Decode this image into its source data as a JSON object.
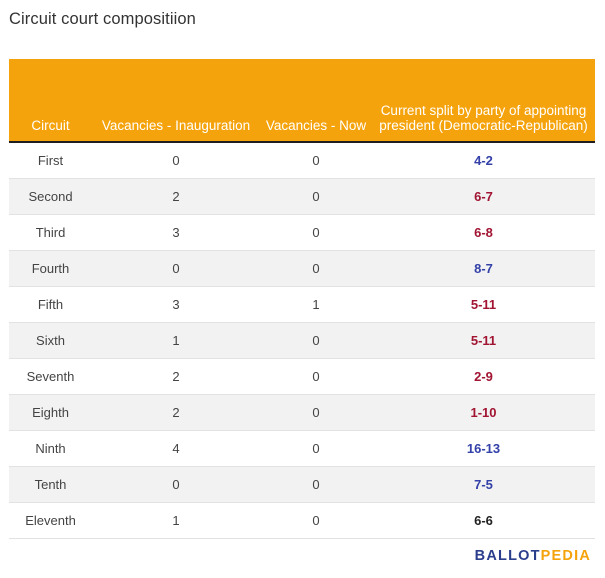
{
  "title": "Circuit court compositiion",
  "colors": {
    "header_bg": "#f5a30c",
    "democratic": "#3341a8",
    "republican": "#a11432",
    "neutral": "#222222"
  },
  "chart_data": {
    "type": "table",
    "columns": [
      "Circuit",
      "Vacancies - Inauguration",
      "Vacancies - Now",
      "Current split by party of appointing president (Democratic-Republican)"
    ],
    "rows": [
      {
        "circuit": "First",
        "vac_inauguration": "0",
        "vac_now": "0",
        "split": "4-2",
        "lean": "democratic"
      },
      {
        "circuit": "Second",
        "vac_inauguration": "2",
        "vac_now": "0",
        "split": "6-7",
        "lean": "republican"
      },
      {
        "circuit": "Third",
        "vac_inauguration": "3",
        "vac_now": "0",
        "split": "6-8",
        "lean": "republican"
      },
      {
        "circuit": "Fourth",
        "vac_inauguration": "0",
        "vac_now": "0",
        "split": "8-7",
        "lean": "democratic"
      },
      {
        "circuit": "Fifth",
        "vac_inauguration": "3",
        "vac_now": "1",
        "split": "5-11",
        "lean": "republican"
      },
      {
        "circuit": "Sixth",
        "vac_inauguration": "1",
        "vac_now": "0",
        "split": "5-11",
        "lean": "republican"
      },
      {
        "circuit": "Seventh",
        "vac_inauguration": "2",
        "vac_now": "0",
        "split": "2-9",
        "lean": "republican"
      },
      {
        "circuit": "Eighth",
        "vac_inauguration": "2",
        "vac_now": "0",
        "split": "1-10",
        "lean": "republican"
      },
      {
        "circuit": "Ninth",
        "vac_inauguration": "4",
        "vac_now": "0",
        "split": "16-13",
        "lean": "democratic"
      },
      {
        "circuit": "Tenth",
        "vac_inauguration": "0",
        "vac_now": "0",
        "split": "7-5",
        "lean": "democratic"
      },
      {
        "circuit": "Eleventh",
        "vac_inauguration": "1",
        "vac_now": "0",
        "split": "6-6",
        "lean": "neutral"
      }
    ]
  },
  "logo": {
    "part1": "BALLOT",
    "part2": "PEDIA"
  }
}
